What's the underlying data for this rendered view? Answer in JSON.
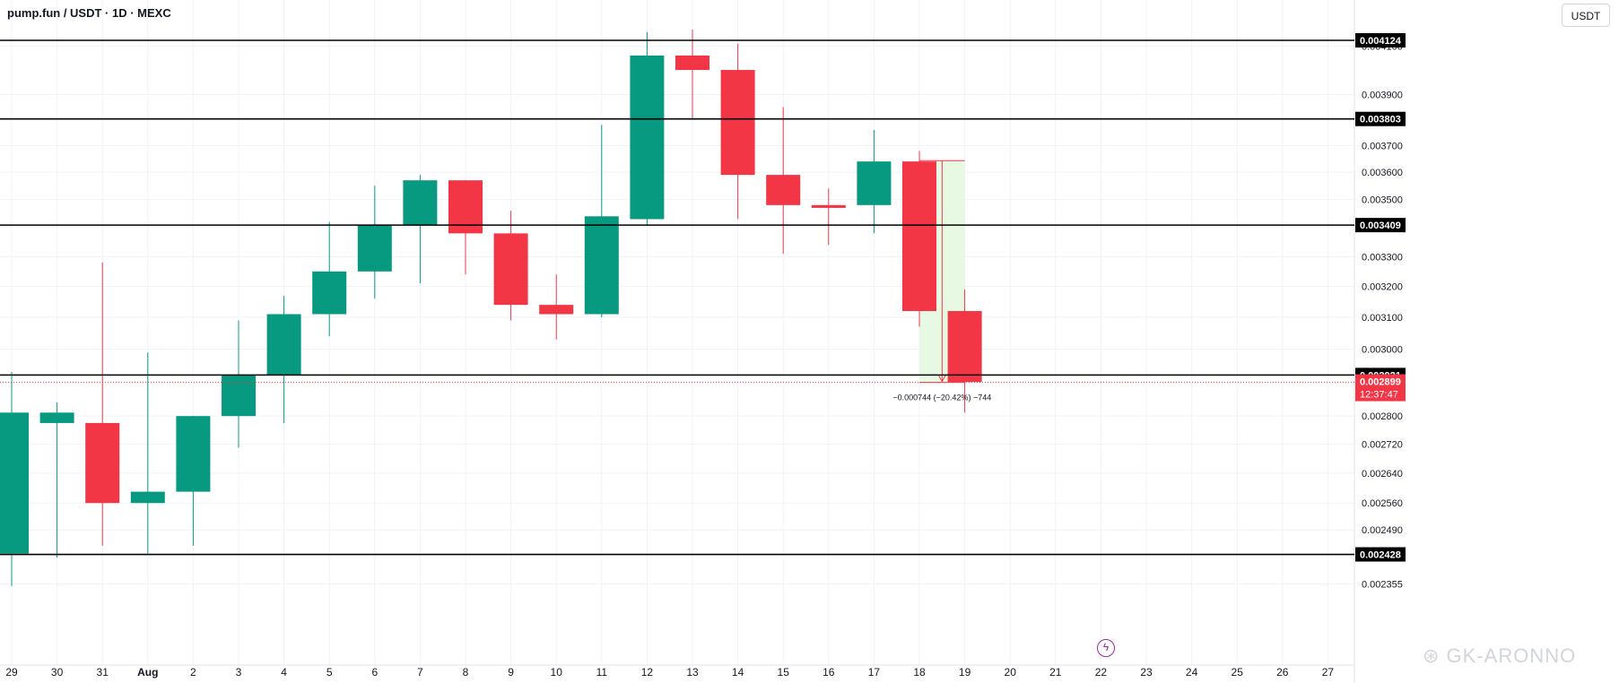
{
  "header": {
    "symbol_title": "pump.fun / USDT · 1D · MEXC",
    "currency_button": "USDT"
  },
  "watermark": "⊛ GK-ARONNO",
  "colors": {
    "up": "#089981",
    "down": "#f23645",
    "grid": "#f0f3fa",
    "level_line": "#000000",
    "price_line": "#f23645",
    "measure_fill": "#e6f8e0"
  },
  "chart_data": {
    "type": "candlestick",
    "title": "pump.fun / USDT · 1D · MEXC",
    "x_labels": [
      "29",
      "30",
      "31",
      "Aug",
      "2",
      "3",
      "4",
      "5",
      "6",
      "7",
      "8",
      "9",
      "10",
      "11",
      "12",
      "13",
      "14",
      "15",
      "16",
      "17",
      "18",
      "19",
      "20",
      "21",
      "22",
      "23",
      "24",
      "25",
      "26",
      "27"
    ],
    "candles": [
      {
        "x": "29",
        "open": 0.00243,
        "high": 0.00293,
        "low": 0.00235,
        "close": 0.00281
      },
      {
        "x": "30",
        "open": 0.00278,
        "high": 0.00284,
        "low": 0.00242,
        "close": 0.00281
      },
      {
        "x": "31",
        "open": 0.00278,
        "high": 0.00328,
        "low": 0.00245,
        "close": 0.00256
      },
      {
        "x": "Aug",
        "open": 0.00256,
        "high": 0.00299,
        "low": 0.00243,
        "close": 0.00259
      },
      {
        "x": "2",
        "open": 0.00259,
        "high": 0.0028,
        "low": 0.00245,
        "close": 0.0028
      },
      {
        "x": "3",
        "open": 0.0028,
        "high": 0.00309,
        "low": 0.00271,
        "close": 0.00292
      },
      {
        "x": "4",
        "open": 0.00292,
        "high": 0.00317,
        "low": 0.00278,
        "close": 0.00311
      },
      {
        "x": "5",
        "open": 0.00311,
        "high": 0.00342,
        "low": 0.00304,
        "close": 0.00325
      },
      {
        "x": "6",
        "open": 0.00325,
        "high": 0.00355,
        "low": 0.00316,
        "close": 0.00341
      },
      {
        "x": "7",
        "open": 0.00341,
        "high": 0.00359,
        "low": 0.00321,
        "close": 0.00357
      },
      {
        "x": "8",
        "open": 0.00357,
        "high": 0.00357,
        "low": 0.00324,
        "close": 0.00338
      },
      {
        "x": "9",
        "open": 0.00338,
        "high": 0.00346,
        "low": 0.00309,
        "close": 0.00314
      },
      {
        "x": "10",
        "open": 0.00314,
        "high": 0.00324,
        "low": 0.00303,
        "close": 0.00311
      },
      {
        "x": "11",
        "open": 0.00311,
        "high": 0.00378,
        "low": 0.0031,
        "close": 0.00344
      },
      {
        "x": "12",
        "open": 0.00343,
        "high": 0.00416,
        "low": 0.00341,
        "close": 0.00406
      },
      {
        "x": "13",
        "open": 0.00406,
        "high": 0.00417,
        "low": 0.0038,
        "close": 0.004
      },
      {
        "x": "14",
        "open": 0.004,
        "high": 0.00411,
        "low": 0.00343,
        "close": 0.00359
      },
      {
        "x": "15",
        "open": 0.00359,
        "high": 0.00385,
        "low": 0.00331,
        "close": 0.00348
      },
      {
        "x": "16",
        "open": 0.00348,
        "high": 0.00354,
        "low": 0.00334,
        "close": 0.00347
      },
      {
        "x": "17",
        "open": 0.00348,
        "high": 0.00376,
        "low": 0.00338,
        "close": 0.00364
      },
      {
        "x": "18",
        "open": 0.00364,
        "high": 0.00368,
        "low": 0.00307,
        "close": 0.00312
      },
      {
        "x": "19",
        "open": 0.00312,
        "high": 0.00319,
        "low": 0.00281,
        "close": 0.0029
      }
    ],
    "y_ticks": [
      "0.004100",
      "0.003900",
      "0.003700",
      "0.003600",
      "0.003500",
      "0.003300",
      "0.003200",
      "0.003100",
      "0.003000",
      "0.002800",
      "0.002720",
      "0.002640",
      "0.002560",
      "0.002490",
      "0.002355"
    ],
    "horizontal_levels": [
      {
        "price": 0.004124,
        "label": "0.004124"
      },
      {
        "price": 0.003803,
        "label": "0.003803"
      },
      {
        "price": 0.003409,
        "label": "0.003409"
      },
      {
        "price": 0.002921,
        "label": "0.002921"
      },
      {
        "price": 0.002428,
        "label": "0.002428"
      }
    ],
    "current_price": {
      "price": 0.002899,
      "label": "0.002899",
      "countdown": "12:37:47"
    },
    "measure": {
      "from_x": "18",
      "to_x": "19",
      "from_price": 0.003643,
      "to_price": 0.002899,
      "label": "−0.000744 (−20.42%) −744"
    },
    "yscale": "log",
    "grid": true
  }
}
